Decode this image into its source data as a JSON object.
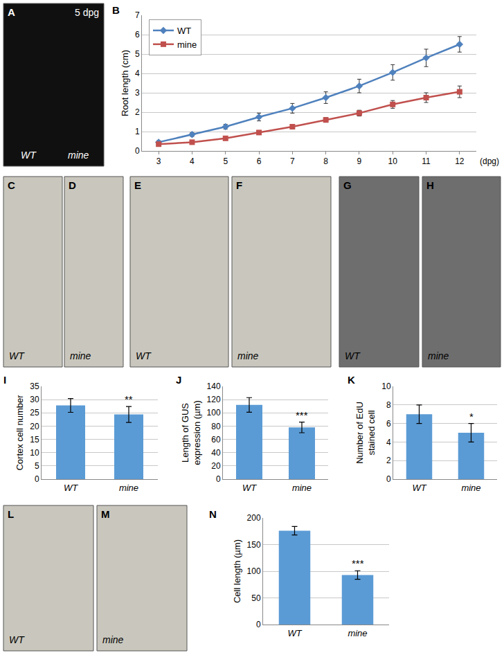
{
  "image_panels": [
    {
      "panel": "A",
      "corner_text": "5 dpg",
      "captions": [
        "WT",
        "mine"
      ]
    },
    {
      "panel": "C",
      "captions": [
        "WT"
      ]
    },
    {
      "panel": "D",
      "captions": [
        "mine"
      ]
    },
    {
      "panel": "E",
      "captions": [
        "WT"
      ]
    },
    {
      "panel": "F",
      "captions": [
        "mine"
      ]
    },
    {
      "panel": "G",
      "captions": [
        "WT"
      ]
    },
    {
      "panel": "H",
      "captions": [
        "mine"
      ]
    },
    {
      "panel": "L",
      "captions": [
        "WT"
      ]
    },
    {
      "panel": "M",
      "captions": [
        "mine"
      ]
    }
  ],
  "chart_data": [
    {
      "panel": "B",
      "type": "line",
      "ylabel": "Root length (cm)",
      "xlabel": "(dpg)",
      "x": [
        3,
        4,
        5,
        6,
        7,
        8,
        9,
        10,
        11,
        12
      ],
      "series": [
        {
          "name": "WT",
          "color": "#4f81bd",
          "marker": "diamond",
          "line_style": "solid",
          "values": [
            0.45,
            0.85,
            1.25,
            1.75,
            2.2,
            2.75,
            3.35,
            4.05,
            4.8,
            5.5
          ],
          "errors": [
            0.08,
            0.1,
            0.12,
            0.2,
            0.25,
            0.3,
            0.35,
            0.4,
            0.45,
            0.4
          ]
        },
        {
          "name": "mine",
          "color": "#c0504d",
          "marker": "square",
          "line_style": "solid",
          "values": [
            0.35,
            0.45,
            0.65,
            0.95,
            1.25,
            1.6,
            1.95,
            2.4,
            2.75,
            3.05
          ],
          "errors": [
            0.05,
            0.05,
            0.06,
            0.07,
            0.1,
            0.12,
            0.15,
            0.2,
            0.25,
            0.3
          ]
        }
      ],
      "xlim": [
        2.5,
        12.5
      ],
      "xticks": [
        3,
        4,
        5,
        6,
        7,
        8,
        9,
        10,
        11,
        12
      ],
      "ylim": [
        0,
        7
      ],
      "yticks": [
        0,
        1,
        2,
        3,
        4,
        5,
        6,
        7
      ],
      "grid": true,
      "legend": "top left"
    },
    {
      "panel": "I",
      "type": "bar",
      "ylabel": "Cortex cell number",
      "categories": [
        "WT",
        "mine"
      ],
      "values": [
        27.8,
        24.4
      ],
      "errors": [
        2.6,
        3.0
      ],
      "color": "#5b9bd5",
      "ylim": [
        0,
        35
      ],
      "yticks": [
        0,
        5,
        10,
        15,
        20,
        25,
        30,
        35
      ],
      "grid": true,
      "annotations": [
        {
          "category": "mine",
          "text": "**"
        }
      ]
    },
    {
      "panel": "J",
      "type": "bar",
      "ylabel": "Length of GUS\nexpression (µm)",
      "categories": [
        "WT",
        "mine"
      ],
      "values": [
        112,
        78
      ],
      "errors": [
        11,
        8
      ],
      "color": "#5b9bd5",
      "ylim": [
        0,
        140
      ],
      "yticks": [
        0,
        20,
        40,
        60,
        80,
        100,
        120,
        140
      ],
      "grid": true,
      "annotations": [
        {
          "category": "mine",
          "text": "***"
        }
      ]
    },
    {
      "panel": "K",
      "type": "bar",
      "ylabel": "Number of EdU\nstained cell",
      "categories": [
        "WT",
        "mine"
      ],
      "values": [
        7.0,
        5.0
      ],
      "errors": [
        1.0,
        1.0
      ],
      "color": "#5b9bd5",
      "ylim": [
        0,
        10
      ],
      "yticks": [
        0,
        2,
        4,
        6,
        8,
        10
      ],
      "grid": true,
      "annotations": [
        {
          "category": "mine",
          "text": "*"
        }
      ]
    },
    {
      "panel": "N",
      "type": "bar",
      "ylabel": "Cell length (µm)",
      "categories": [
        "WT",
        "mine"
      ],
      "values": [
        176,
        93
      ],
      "errors": [
        8,
        8
      ],
      "color": "#5b9bd5",
      "ylim": [
        0,
        200
      ],
      "yticks": [
        0,
        50,
        100,
        150,
        200
      ],
      "grid": true,
      "annotations": [
        {
          "category": "mine",
          "text": "***"
        }
      ]
    }
  ]
}
